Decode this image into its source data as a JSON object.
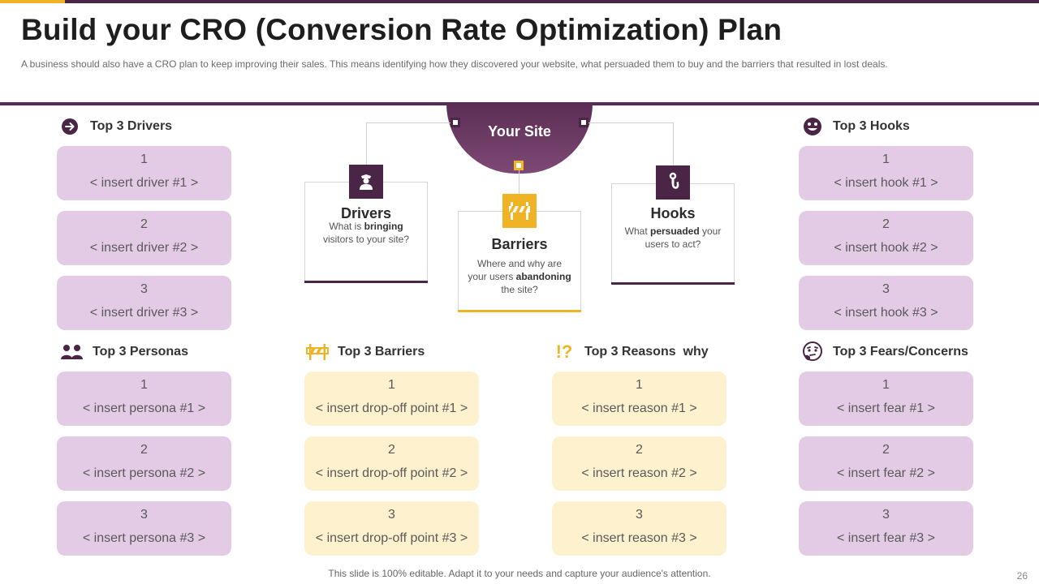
{
  "header": {
    "title": "Build your CRO (Conversion Rate Optimization) Plan",
    "subtitle": "A business should also have  a CRO  plan to keep improving  their sales. This means identifying how they discovered  your website, what persuaded  them to buy and the barriers that resulted in lost deals."
  },
  "center": {
    "site_label": "Your Site",
    "drivers": {
      "title": "Drivers",
      "desc_pre": "What is ",
      "desc_bold": "bringing",
      "desc_post": " visitors to your site?",
      "icon": "police-officer-icon"
    },
    "barriers": {
      "title": "Barriers",
      "desc_pre": "Where and why are your users ",
      "desc_bold": "abandoning",
      "desc_post": " the site?",
      "icon": "barrier-icon"
    },
    "hooks": {
      "title": "Hooks",
      "desc_pre": "What ",
      "desc_bold": "persuaded",
      "desc_post": " your users to act?",
      "icon": "crane-hook-icon"
    }
  },
  "sections": {
    "drivers": {
      "title": "Top 3 Drivers",
      "icon": "arrow-circle-icon",
      "items": [
        {
          "num": "1",
          "text": "< insert driver #1 >"
        },
        {
          "num": "2",
          "text": "< insert driver #2 >"
        },
        {
          "num": "3",
          "text": "< insert driver #3 >"
        }
      ]
    },
    "hooks": {
      "title": "Top 3 Hooks",
      "icon": "smiley-icon",
      "items": [
        {
          "num": "1",
          "text": "< insert hook #1 >"
        },
        {
          "num": "2",
          "text": "< insert hook #2 >"
        },
        {
          "num": "3",
          "text": "< insert hook #3 >"
        }
      ]
    },
    "personas": {
      "title": "Top 3 Personas",
      "icon": "people-icon",
      "items": [
        {
          "num": "1",
          "text": "< insert persona #1 >"
        },
        {
          "num": "2",
          "text": "< insert persona #2 >"
        },
        {
          "num": "3",
          "text": "< insert persona #3 >"
        }
      ]
    },
    "barriers": {
      "title": "Top 3 Barriers",
      "icon": "barrier-icon",
      "items": [
        {
          "num": "1",
          "text": "< insert drop-off point #1 >"
        },
        {
          "num": "2",
          "text": "< insert drop-off point #2 >"
        },
        {
          "num": "3",
          "text": "< insert drop-off point #3 >"
        }
      ]
    },
    "reasons": {
      "title": "Top 3 Reasons  why",
      "icon": "exclamation-question-icon",
      "glyph": "!?",
      "items": [
        {
          "num": "1",
          "text": "< insert reason #1 >"
        },
        {
          "num": "2",
          "text": "< insert reason #2 >"
        },
        {
          "num": "3",
          "text": "< insert reason #3 >"
        }
      ]
    },
    "fears": {
      "title": "Top 3 Fears/Concerns",
      "icon": "thinking-face-icon",
      "items": [
        {
          "num": "1",
          "text": "< insert fear #1 >"
        },
        {
          "num": "2",
          "text": "< insert fear #2 >"
        },
        {
          "num": "3",
          "text": "< insert fear #3 >"
        }
      ]
    }
  },
  "footer": {
    "note": "This slide is 100% editable. Adapt it to your needs and capture your audience's attention.",
    "page": "26"
  },
  "colors": {
    "primary": "#4a2545",
    "accent": "#f0b323",
    "purple_box": "#e3cbe5",
    "yellow_box": "#fdf1ce"
  }
}
